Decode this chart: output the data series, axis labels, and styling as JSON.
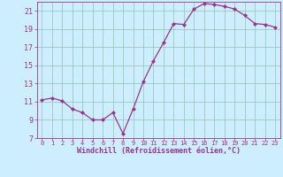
{
  "x": [
    0,
    1,
    2,
    3,
    4,
    5,
    6,
    7,
    8,
    9,
    10,
    11,
    12,
    13,
    14,
    15,
    16,
    17,
    18,
    19,
    20,
    21,
    22,
    23
  ],
  "y": [
    11.2,
    11.4,
    11.1,
    10.2,
    9.8,
    9.0,
    9.0,
    9.8,
    7.5,
    10.2,
    13.2,
    15.5,
    17.5,
    19.6,
    19.5,
    21.2,
    21.8,
    21.7,
    21.5,
    21.2,
    20.5,
    19.6,
    19.5,
    19.2
  ],
  "line_color": "#993399",
  "marker": "D",
  "marker_size": 2,
  "bg_color": "#cceeff",
  "grid_color": "#99ccbb",
  "xlabel": "Windchill (Refroidissement éolien,°C)",
  "xlim": [
    -0.5,
    23.5
  ],
  "ylim": [
    7,
    22
  ],
  "yticks": [
    7,
    9,
    11,
    13,
    15,
    17,
    19,
    21
  ],
  "xtick_labels": [
    "0",
    "1",
    "2",
    "3",
    "4",
    "5",
    "6",
    "7",
    "8",
    "9",
    "10",
    "11",
    "12",
    "13",
    "14",
    "15",
    "16",
    "17",
    "18",
    "19",
    "20",
    "21",
    "22",
    "23"
  ],
  "tick_color": "#993399",
  "label_color": "#993399",
  "font": "monospace",
  "xtick_fontsize": 5.0,
  "ytick_fontsize": 6.0,
  "xlabel_fontsize": 6.0
}
